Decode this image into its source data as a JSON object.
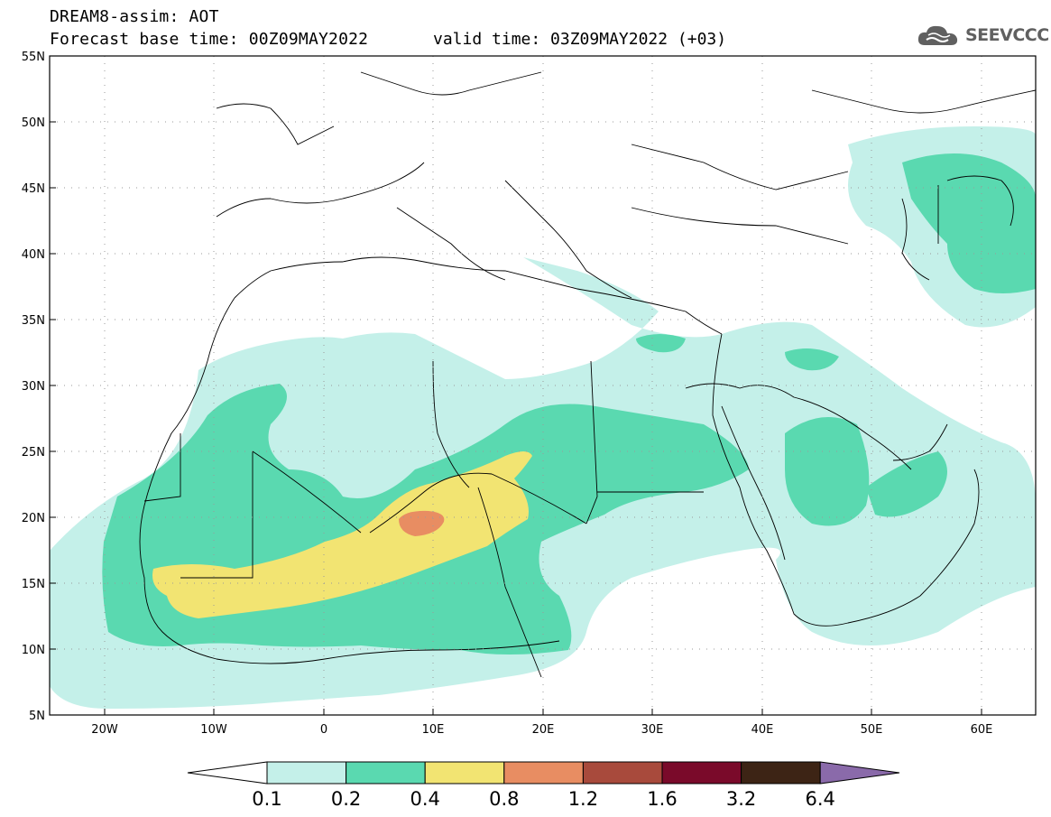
{
  "header": {
    "model_line": "DREAM8-assim: AOT",
    "base_time": "Forecast base time: 00Z09MAY2022",
    "valid_time": "valid time: 03Z09MAY2022 (+03)"
  },
  "logo": {
    "text": "SEEVCCC",
    "icon": "cloud-icon"
  },
  "map": {
    "lat_ticks": [
      "55N",
      "50N",
      "45N",
      "40N",
      "35N",
      "30N",
      "25N",
      "20N",
      "15N",
      "10N",
      "5N"
    ],
    "lon_ticks": [
      "20W",
      "10W",
      "0",
      "10E",
      "20E",
      "30E",
      "40E",
      "50E",
      "60E"
    ],
    "lat_range": [
      5,
      55
    ],
    "lon_range": [
      -25,
      65
    ],
    "grid": "dotted"
  },
  "colorbar": {
    "labels": [
      "0.1",
      "0.2",
      "0.4",
      "0.8",
      "1.2",
      "1.6",
      "3.2",
      "6.4"
    ],
    "colors": [
      "#c4f0e9",
      "#5ad9b0",
      "#f2e472",
      "#e88d62",
      "#a84a3c",
      "#7a0a2a",
      "#3d2415",
      "#8a6aaa"
    ],
    "under_color": "#ffffff",
    "over_color": "#8a6aaa"
  }
}
